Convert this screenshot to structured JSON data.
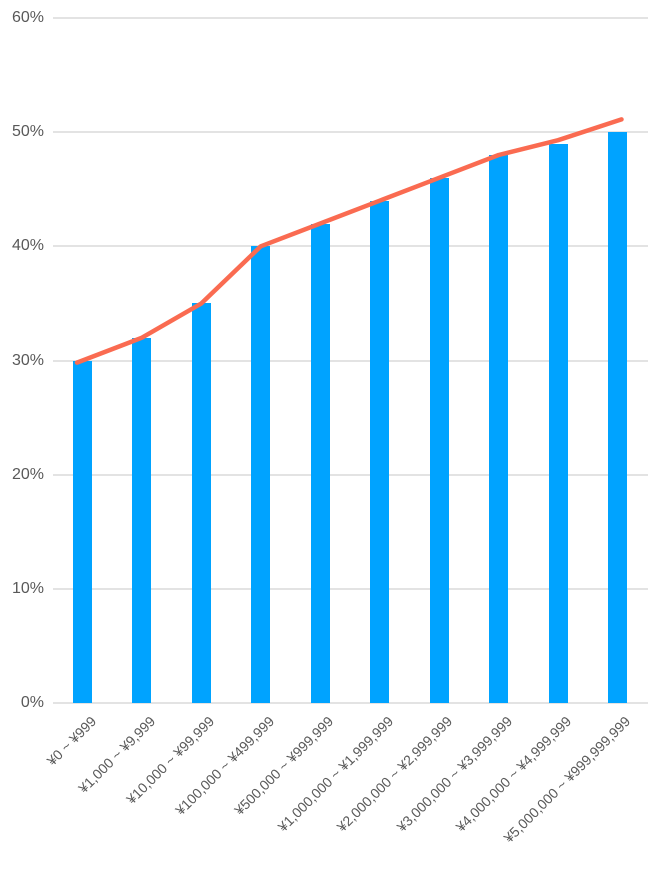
{
  "chart_data": {
    "type": "bar",
    "title": "",
    "xlabel": "",
    "ylabel": "",
    "categories": [
      "¥0 ~ ¥999",
      "¥1,000 ~ ¥9,999",
      "¥10,000 ~ ¥99,999",
      "¥100,000 ~ ¥499,999",
      "¥500,000 ~ ¥999,999",
      "¥1,000,000 ~ ¥1,999,999",
      "¥2,000,000 ~ ¥2,999,999",
      "¥3,000,000 ~ ¥3,999,999",
      "¥4,000,000 ~ ¥4,999,999",
      "¥5,000,000 ~ ¥999,999,999"
    ],
    "series": [
      {
        "name": "percentage-bars",
        "type": "bar",
        "values": [
          30,
          32,
          35,
          40,
          42,
          44,
          46,
          48,
          49,
          50
        ]
      },
      {
        "name": "trend-line",
        "type": "line",
        "values": [
          30,
          32,
          35,
          40,
          42,
          44,
          46,
          48,
          49.3,
          51
        ]
      }
    ],
    "ylim": [
      0,
      60
    ],
    "ytick_step": 10,
    "ytick_labels": [
      "0%",
      "10%",
      "20%",
      "30%",
      "40%",
      "50%",
      "60%"
    ],
    "grid": true,
    "legend": false,
    "x_tick_rotation_deg": 45,
    "colors": {
      "bar": "#00A3FF",
      "line": "#FA6B51",
      "gridline": "#E3E3E3",
      "axis_text": "#595959",
      "background": "#FFFFFF"
    }
  }
}
